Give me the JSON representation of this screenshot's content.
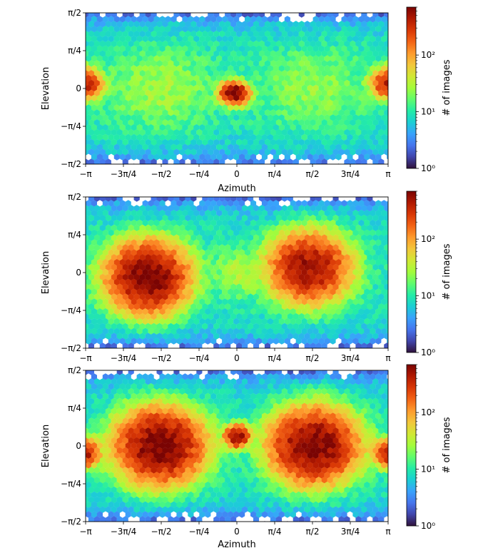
{
  "chart_data": [
    {
      "type": "heatmap",
      "subtype": "hexbin",
      "xlabel": "Azimuth",
      "ylabel": "Elevation",
      "xlim": [
        -3.14159,
        3.14159
      ],
      "ylim": [
        -1.5708,
        1.5708
      ],
      "xticks": [
        "−π",
        "−3π/4",
        "−π/2",
        "−π/4",
        "0",
        "π/4",
        "π/2",
        "3π/4",
        "π"
      ],
      "yticks": [
        "−π/2",
        "−π/4",
        "0",
        "π/4",
        "π/2"
      ],
      "colorbar": {
        "label": "# of images",
        "scale": "log",
        "range": [
          1,
          700
        ],
        "ticks": [
          "10⁰",
          "10¹",
          "10²"
        ]
      },
      "colormap": [
        "#30123b",
        "#4145ab",
        "#4675ed",
        "#39a2fc",
        "#1bcfd4",
        "#24eca6",
        "#61fc6c",
        "#a4fc3b",
        "#d1e834",
        "#f3c63a",
        "#fe9b2d",
        "#f36315",
        "#d93806",
        "#b11901",
        "#7a0403"
      ],
      "background_log10": 0.95,
      "blobs": [
        {
          "azimuth": -3.14159,
          "elevation": 0.1,
          "peak": 350,
          "spread_az": 0.18,
          "spread_el": 0.16
        },
        {
          "azimuth": 3.14159,
          "elevation": 0.1,
          "peak": 350,
          "spread_az": 0.18,
          "spread_el": 0.16
        },
        {
          "azimuth": -0.05,
          "elevation": -0.1,
          "peak": 700,
          "spread_az": 0.15,
          "spread_el": 0.12
        },
        {
          "azimuth": -1.6,
          "elevation": 0.0,
          "peak": 18,
          "spread_az": 0.7,
          "spread_el": 0.5
        },
        {
          "azimuth": 1.6,
          "elevation": 0.0,
          "peak": 15,
          "spread_az": 0.7,
          "spread_el": 0.5
        }
      ]
    },
    {
      "type": "heatmap",
      "subtype": "hexbin",
      "xlabel": "",
      "ylabel": "Elevation",
      "xlim": [
        -3.14159,
        3.14159
      ],
      "ylim": [
        -1.5708,
        1.5708
      ],
      "xticks": [
        "−π",
        "−3π/4",
        "−π/2",
        "−π/4",
        "0",
        "π/4",
        "π/2",
        "3π/4",
        "π"
      ],
      "yticks": [
        "−π/2",
        "−π/4",
        "0",
        "π/4",
        "π/2"
      ],
      "colorbar": {
        "label": "# of images",
        "scale": "log",
        "range": [
          1,
          700
        ],
        "ticks": [
          "10⁰",
          "10¹",
          "10²"
        ]
      },
      "background_log10": 0.95,
      "blobs": [
        {
          "azimuth": -1.85,
          "elevation": -0.1,
          "peak": 700,
          "spread_az": 0.42,
          "spread_el": 0.36
        },
        {
          "azimuth": 1.5,
          "elevation": 0.1,
          "peak": 500,
          "spread_az": 0.42,
          "spread_el": 0.36
        },
        {
          "azimuth": 0.0,
          "elevation": 0.0,
          "peak": 20,
          "spread_az": 0.3,
          "spread_el": 0.3
        }
      ]
    },
    {
      "type": "heatmap",
      "subtype": "hexbin",
      "xlabel": "Azimuth",
      "ylabel": "Elevation",
      "xlim": [
        -3.14159,
        3.14159
      ],
      "ylim": [
        -1.5708,
        1.5708
      ],
      "xticks": [
        "−π",
        "−3π/4",
        "−π/2",
        "−π/4",
        "0",
        "π/4",
        "π/2",
        "3π/4",
        "π"
      ],
      "yticks": [
        "−π/2",
        "−π/4",
        "0",
        "π/4",
        "π/2"
      ],
      "colorbar": {
        "label": "# of images",
        "scale": "log",
        "range": [
          1,
          700
        ],
        "ticks": [
          "10⁰",
          "10¹",
          "10²"
        ]
      },
      "background_log10": 0.95,
      "blobs": [
        {
          "azimuth": -1.6,
          "elevation": 0.0,
          "peak": 700,
          "spread_az": 0.45,
          "spread_el": 0.38
        },
        {
          "azimuth": 1.6,
          "elevation": 0.0,
          "peak": 700,
          "spread_az": 0.45,
          "spread_el": 0.38
        },
        {
          "azimuth": 0.0,
          "elevation": 0.2,
          "peak": 600,
          "spread_az": 0.13,
          "spread_el": 0.12
        },
        {
          "azimuth": -3.14159,
          "elevation": -0.15,
          "peak": 400,
          "spread_az": 0.15,
          "spread_el": 0.15
        },
        {
          "azimuth": 3.14159,
          "elevation": -0.15,
          "peak": 400,
          "spread_az": 0.15,
          "spread_el": 0.15
        }
      ]
    }
  ]
}
